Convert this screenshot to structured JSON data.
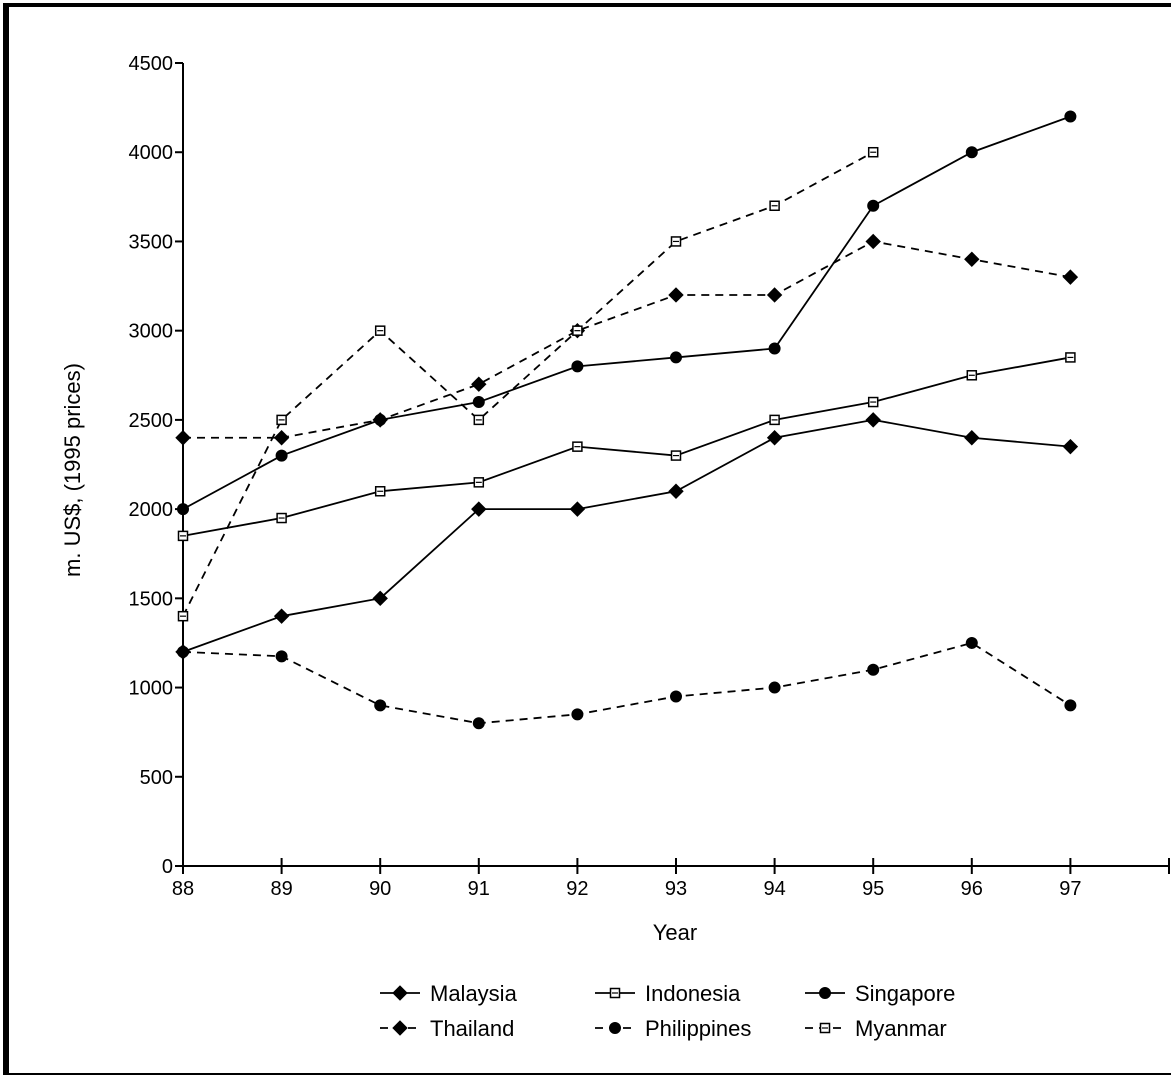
{
  "chart_data": {
    "type": "line",
    "title": "",
    "xlabel": "Year",
    "ylabel": "m. US$, (1995 prices)",
    "x": [
      "88",
      "89",
      "90",
      "91",
      "92",
      "93",
      "94",
      "95",
      "96",
      "97"
    ],
    "ylim": [
      0,
      4500
    ],
    "yticks": [
      0,
      500,
      1000,
      1500,
      2000,
      2500,
      3000,
      3500,
      4000,
      4500
    ],
    "grid": false,
    "legend_placement": "bottom",
    "series": [
      {
        "name": "Malaysia",
        "marker": "diamond-filled",
        "dash": "solid",
        "values": [
          1200,
          1400,
          1500,
          2000,
          2000,
          2100,
          2400,
          2500,
          2400,
          2350
        ]
      },
      {
        "name": "Indonesia",
        "marker": "square-open",
        "dash": "solid",
        "values": [
          1850,
          1950,
          2100,
          2150,
          2350,
          2300,
          2500,
          2600,
          2750,
          2850
        ]
      },
      {
        "name": "Singapore",
        "marker": "circle-filled",
        "dash": "solid",
        "values": [
          2000,
          2300,
          2500,
          2600,
          2800,
          2850,
          2900,
          3700,
          4000,
          4200
        ]
      },
      {
        "name": "Thailand",
        "marker": "diamond-filled",
        "dash": "dashed",
        "values": [
          2400,
          2400,
          2500,
          2700,
          3000,
          3200,
          3200,
          3500,
          3400,
          3300
        ]
      },
      {
        "name": "Philippines",
        "marker": "circle-filled",
        "dash": "dashed",
        "values": [
          1200,
          1175,
          900,
          800,
          850,
          950,
          1000,
          1100,
          1250,
          900
        ]
      },
      {
        "name": "Myanmar",
        "marker": "square-open",
        "dash": "dashed",
        "values": [
          1400,
          2500,
          3000,
          2500,
          3000,
          3500,
          3700,
          4000,
          null,
          null
        ]
      }
    ]
  }
}
